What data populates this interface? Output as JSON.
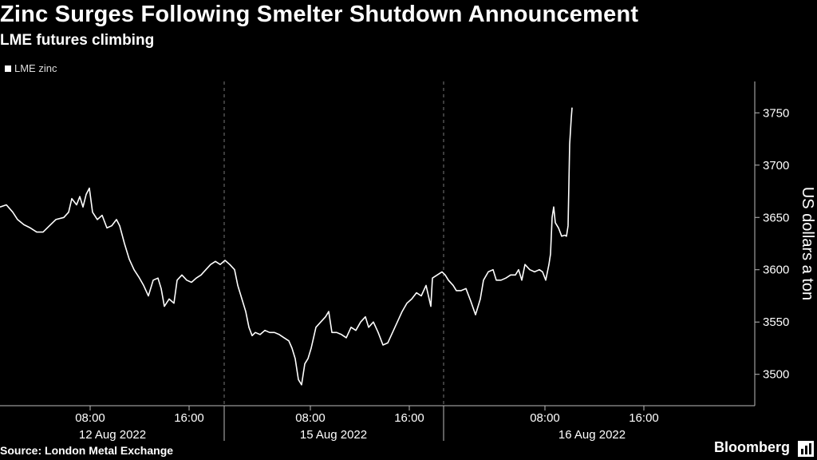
{
  "chart_data": {
    "type": "line",
    "title": "Zinc Surges Following Smelter Shutdown Announcement",
    "subtitle": "LME futures climbing",
    "ylabel": "US dollars a ton",
    "ylim": [
      3470,
      3780
    ],
    "yticks": [
      3500,
      3550,
      3600,
      3650,
      3700,
      3750
    ],
    "x_time_ticks": [
      "08:00",
      "16:00",
      "08:00",
      "16:00",
      "08:00",
      "16:00"
    ],
    "x_date_labels": [
      "12 Aug 2022",
      "15 Aug 2022",
      "16 Aug 2022"
    ],
    "legend_position": "top-left",
    "grid": false,
    "series": [
      {
        "name": "LME zinc",
        "color": "#ffffff",
        "points": [
          [
            0,
            3660
          ],
          [
            8,
            3662
          ],
          [
            16,
            3655
          ],
          [
            22,
            3648
          ],
          [
            30,
            3643
          ],
          [
            38,
            3640
          ],
          [
            46,
            3636
          ],
          [
            54,
            3636
          ],
          [
            62,
            3642
          ],
          [
            70,
            3648
          ],
          [
            80,
            3650
          ],
          [
            86,
            3655
          ],
          [
            90,
            3668
          ],
          [
            96,
            3662
          ],
          [
            100,
            3670
          ],
          [
            104,
            3660
          ],
          [
            108,
            3672
          ],
          [
            112,
            3678
          ],
          [
            116,
            3655
          ],
          [
            122,
            3648
          ],
          [
            128,
            3652
          ],
          [
            134,
            3640
          ],
          [
            140,
            3642
          ],
          [
            146,
            3648
          ],
          [
            150,
            3642
          ],
          [
            156,
            3625
          ],
          [
            162,
            3610
          ],
          [
            168,
            3600
          ],
          [
            174,
            3593
          ],
          [
            180,
            3585
          ],
          [
            186,
            3575
          ],
          [
            192,
            3590
          ],
          [
            198,
            3592
          ],
          [
            202,
            3582
          ],
          [
            206,
            3565
          ],
          [
            212,
            3572
          ],
          [
            218,
            3568
          ],
          [
            222,
            3590
          ],
          [
            228,
            3595
          ],
          [
            234,
            3590
          ],
          [
            240,
            3588
          ],
          [
            246,
            3592
          ],
          [
            252,
            3595
          ],
          [
            258,
            3600
          ],
          [
            264,
            3605
          ],
          [
            270,
            3608
          ],
          [
            276,
            3605
          ],
          [
            282,
            3609
          ],
          [
            288,
            3605
          ],
          [
            294,
            3600
          ],
          [
            298,
            3585
          ],
          [
            304,
            3570
          ],
          [
            308,
            3560
          ],
          [
            312,
            3545
          ],
          [
            316,
            3537
          ],
          [
            320,
            3540
          ],
          [
            326,
            3538
          ],
          [
            332,
            3542
          ],
          [
            338,
            3540
          ],
          [
            344,
            3540
          ],
          [
            350,
            3538
          ],
          [
            356,
            3535
          ],
          [
            362,
            3532
          ],
          [
            366,
            3525
          ],
          [
            370,
            3515
          ],
          [
            374,
            3495
          ],
          [
            378,
            3490
          ],
          [
            382,
            3510
          ],
          [
            386,
            3515
          ],
          [
            390,
            3525
          ],
          [
            396,
            3545
          ],
          [
            402,
            3550
          ],
          [
            408,
            3555
          ],
          [
            412,
            3560
          ],
          [
            416,
            3540
          ],
          [
            422,
            3540
          ],
          [
            428,
            3538
          ],
          [
            434,
            3535
          ],
          [
            440,
            3545
          ],
          [
            446,
            3542
          ],
          [
            452,
            3550
          ],
          [
            458,
            3555
          ],
          [
            462,
            3545
          ],
          [
            468,
            3550
          ],
          [
            474,
            3540
          ],
          [
            480,
            3528
          ],
          [
            486,
            3530
          ],
          [
            492,
            3540
          ],
          [
            498,
            3550
          ],
          [
            504,
            3560
          ],
          [
            510,
            3568
          ],
          [
            516,
            3572
          ],
          [
            522,
            3578
          ],
          [
            528,
            3575
          ],
          [
            534,
            3585
          ],
          [
            540,
            3565
          ],
          [
            542,
            3592
          ],
          [
            548,
            3595
          ],
          [
            554,
            3598
          ],
          [
            558,
            3595
          ],
          [
            562,
            3590
          ],
          [
            568,
            3585
          ],
          [
            572,
            3580
          ],
          [
            578,
            3580
          ],
          [
            584,
            3582
          ],
          [
            590,
            3570
          ],
          [
            596,
            3557
          ],
          [
            602,
            3572
          ],
          [
            606,
            3590
          ],
          [
            612,
            3598
          ],
          [
            618,
            3600
          ],
          [
            622,
            3590
          ],
          [
            628,
            3590
          ],
          [
            634,
            3592
          ],
          [
            640,
            3595
          ],
          [
            646,
            3595
          ],
          [
            650,
            3600
          ],
          [
            654,
            3590
          ],
          [
            658,
            3605
          ],
          [
            664,
            3600
          ],
          [
            670,
            3598
          ],
          [
            676,
            3600
          ],
          [
            680,
            3598
          ],
          [
            684,
            3590
          ],
          [
            688,
            3605
          ],
          [
            690,
            3615
          ],
          [
            692,
            3650
          ],
          [
            694,
            3660
          ],
          [
            696,
            3645
          ],
          [
            700,
            3640
          ],
          [
            704,
            3632
          ],
          [
            708,
            3633
          ],
          [
            710,
            3632
          ],
          [
            712,
            3642
          ],
          [
            714,
            3720
          ],
          [
            716,
            3745
          ],
          [
            717,
            3755
          ]
        ]
      }
    ]
  },
  "source": "Source: London Metal Exchange",
  "brand": "Bloomberg"
}
